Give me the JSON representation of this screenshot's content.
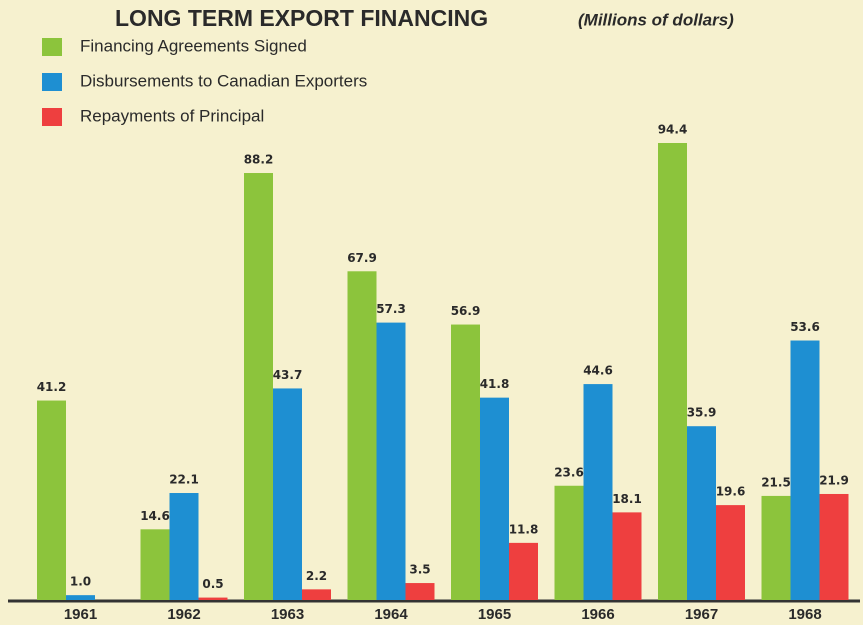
{
  "chart_data": {
    "type": "bar",
    "title": "LONG TERM EXPORT FINANCING",
    "subtitle": "(Millions of dollars)",
    "categories": [
      "1961",
      "1962",
      "1963",
      "1964",
      "1965",
      "1966",
      "1967",
      "1968"
    ],
    "series": [
      {
        "name": "Financing Agreements Signed",
        "color": "#8cc43c",
        "values": [
          41.2,
          14.6,
          88.2,
          67.9,
          56.9,
          23.6,
          94.4,
          21.5
        ],
        "value_labels": [
          "41.2",
          "14.6",
          "88.2",
          "67.9",
          "56.9",
          "23.6",
          "94.4",
          "21.5"
        ]
      },
      {
        "name": "Disbursements to Canadian Exporters",
        "color": "#1e8fd2",
        "values": [
          1.0,
          22.1,
          43.7,
          57.3,
          41.8,
          44.6,
          35.9,
          53.6
        ],
        "value_labels": [
          "1.0",
          "22.1",
          "43.7",
          "57.3",
          "41.8",
          "44.6",
          "35.9",
          "53.6"
        ]
      },
      {
        "name": "Repayments of Principal",
        "color": "#ee3f3f",
        "values": [
          null,
          0.5,
          2.2,
          3.5,
          11.8,
          18.1,
          19.6,
          21.9
        ],
        "value_labels": [
          null,
          "0.5",
          "2.2",
          "3.5",
          "11.8",
          "18.1",
          "19.6",
          "21.9"
        ]
      }
    ]
  }
}
